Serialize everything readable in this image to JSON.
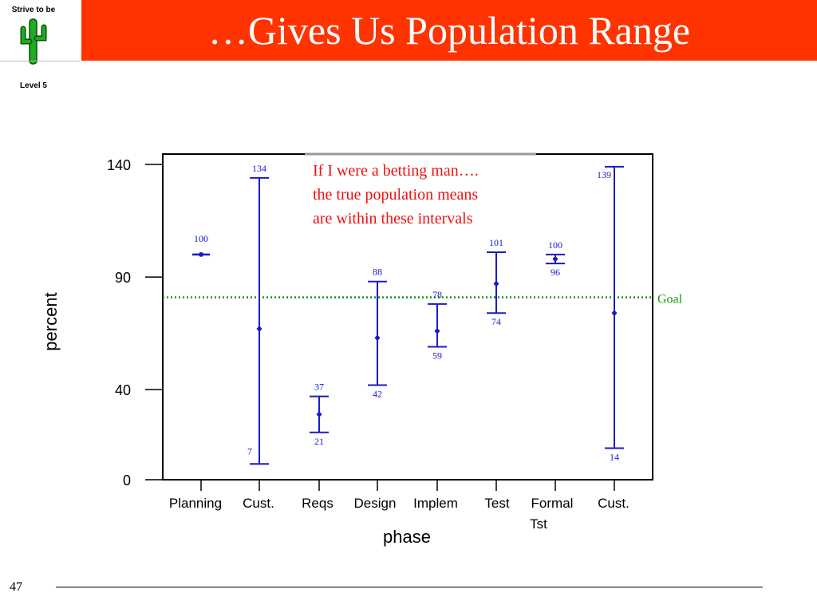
{
  "logo": {
    "top_text": "Strive to be",
    "bottom_text": "Level 5",
    "icon": "cactus-icon"
  },
  "title": "…Gives Us Population Range",
  "page_number": "47",
  "annotation": {
    "lines": [
      "If I were a betting man….",
      "the true population means",
      "are within these intervals"
    ]
  },
  "colors": {
    "title_bar": "#ff3300",
    "interval": "#1a1ac8",
    "goal": "#119911",
    "annotation": "#ee1111"
  },
  "chart_data": {
    "type": "interval",
    "xlabel": "phase",
    "ylabel": "percent",
    "ylim": [
      0,
      140
    ],
    "y_ticks": [
      0,
      40,
      90,
      140
    ],
    "categories": [
      "Planning",
      "Cust.",
      "Reqs",
      "Design",
      "Implem",
      "Test",
      "Formal Tst",
      "Cust."
    ],
    "intervals": [
      {
        "category": "Planning",
        "upper": 100,
        "lower": null,
        "mean": 100,
        "upper_label": "100",
        "lower_label": ""
      },
      {
        "category": "Cust.",
        "upper": 134,
        "lower": 7,
        "mean": 67,
        "upper_label": "134",
        "lower_label": "7"
      },
      {
        "category": "Reqs",
        "upper": 37,
        "lower": 21,
        "mean": 29,
        "upper_label": "37",
        "lower_label": "21"
      },
      {
        "category": "Design",
        "upper": 88,
        "lower": 42,
        "mean": 63,
        "upper_label": "88",
        "lower_label": "42"
      },
      {
        "category": "Implem",
        "upper": 78,
        "lower": 59,
        "mean": 66,
        "upper_label": "78",
        "lower_label": "59"
      },
      {
        "category": "Test",
        "upper": 101,
        "lower": 74,
        "mean": 87,
        "upper_label": "101",
        "lower_label": "74"
      },
      {
        "category": "Formal Tst",
        "upper": 100,
        "lower": 96,
        "mean": 98,
        "upper_label": "100",
        "lower_label": "96"
      },
      {
        "category": "Cust.",
        "upper": 139,
        "lower": 14,
        "mean": 74,
        "upper_label": "139",
        "lower_label": "14"
      }
    ],
    "reference_line": {
      "label": "Goal",
      "value": 81,
      "style": "dotted"
    },
    "grid": false
  }
}
